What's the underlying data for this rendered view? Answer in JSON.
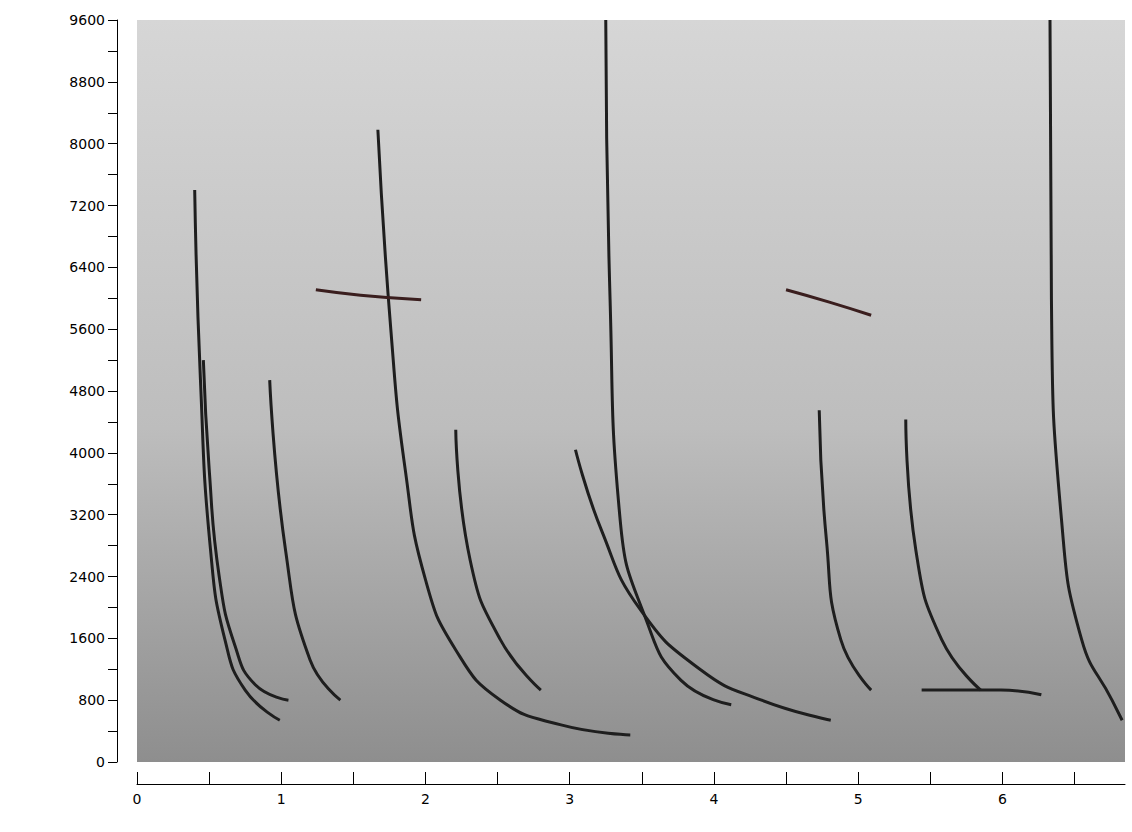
{
  "chart_data": {
    "type": "line",
    "grid": false,
    "xlim": [
      0,
      6.85
    ],
    "xticks": [
      0,
      1,
      2,
      3,
      4,
      5,
      6
    ],
    "ylim": [
      0,
      9600
    ],
    "yticks": [
      0,
      800,
      1600,
      2400,
      3200,
      4000,
      4800,
      5600,
      6400,
      7200,
      8000,
      8800,
      9600
    ],
    "series": [
      {
        "x": [
          0.4,
          0.44,
          0.51,
          0.61,
          0.75,
          0.99
        ],
        "values": [
          7400,
          4940,
          2740,
          1580,
          930,
          540
        ],
        "color": "#1e1e1e"
      },
      {
        "x": [
          0.46,
          0.5,
          0.57,
          0.68,
          0.82,
          1.05
        ],
        "values": [
          5200,
          3800,
          2400,
          1500,
          1000,
          800
        ],
        "color": "#1e1e1e"
      },
      {
        "x": [
          0.92,
          1.03,
          1.2,
          1.41
        ],
        "values": [
          4940,
          2740,
          1320,
          800
        ],
        "color": "#1e1e1e"
      },
      {
        "x": [
          1.67,
          1.76,
          1.86,
          2.0,
          2.21,
          2.52,
          2.94,
          3.42
        ],
        "values": [
          8180,
          5590,
          3780,
          2360,
          1450,
          800,
          480,
          350
        ],
        "color": "#1e1e1e"
      },
      {
        "x": [
          1.24,
          1.55,
          1.97
        ],
        "values": [
          6110,
          6040,
          5980
        ],
        "color": "#3a1e1e"
      },
      {
        "x": [
          2.21,
          2.31,
          2.52,
          2.8
        ],
        "values": [
          4300,
          2610,
          1580,
          930
        ],
        "color": "#1e1e1e"
      },
      {
        "x": [
          3.25,
          3.28,
          3.35,
          3.53,
          3.77,
          4.12
        ],
        "values": [
          9600,
          5980,
          3130,
          1840,
          1060,
          740
        ],
        "color": "#1e1e1e"
      },
      {
        "x": [
          3.04,
          3.22,
          3.49,
          3.91,
          4.33,
          4.81
        ],
        "values": [
          4040,
          3000,
          1970,
          1190,
          800,
          540
        ],
        "color": "#1e1e1e"
      },
      {
        "x": [
          4.5,
          4.8,
          5.09
        ],
        "values": [
          6110,
          5950,
          5780
        ],
        "color": "#3a1e1e"
      },
      {
        "x": [
          4.73,
          4.78,
          4.88,
          5.09
        ],
        "values": [
          4550,
          2870,
          1580,
          930
        ],
        "color": "#1e1e1e"
      },
      {
        "x": [
          5.33,
          5.4,
          5.58,
          5.85
        ],
        "values": [
          4430,
          2740,
          1580,
          930
        ],
        "color": "#1e1e1e"
      },
      {
        "x": [
          5.44,
          5.99,
          6.27
        ],
        "values": [
          930,
          930,
          870
        ],
        "color": "#1e1e1e"
      },
      {
        "x": [
          6.33,
          6.34,
          6.41,
          6.55,
          6.76,
          6.83
        ],
        "values": [
          9600,
          5980,
          3130,
          1580,
          800,
          540
        ],
        "color": "#1e1e1e"
      }
    ]
  }
}
